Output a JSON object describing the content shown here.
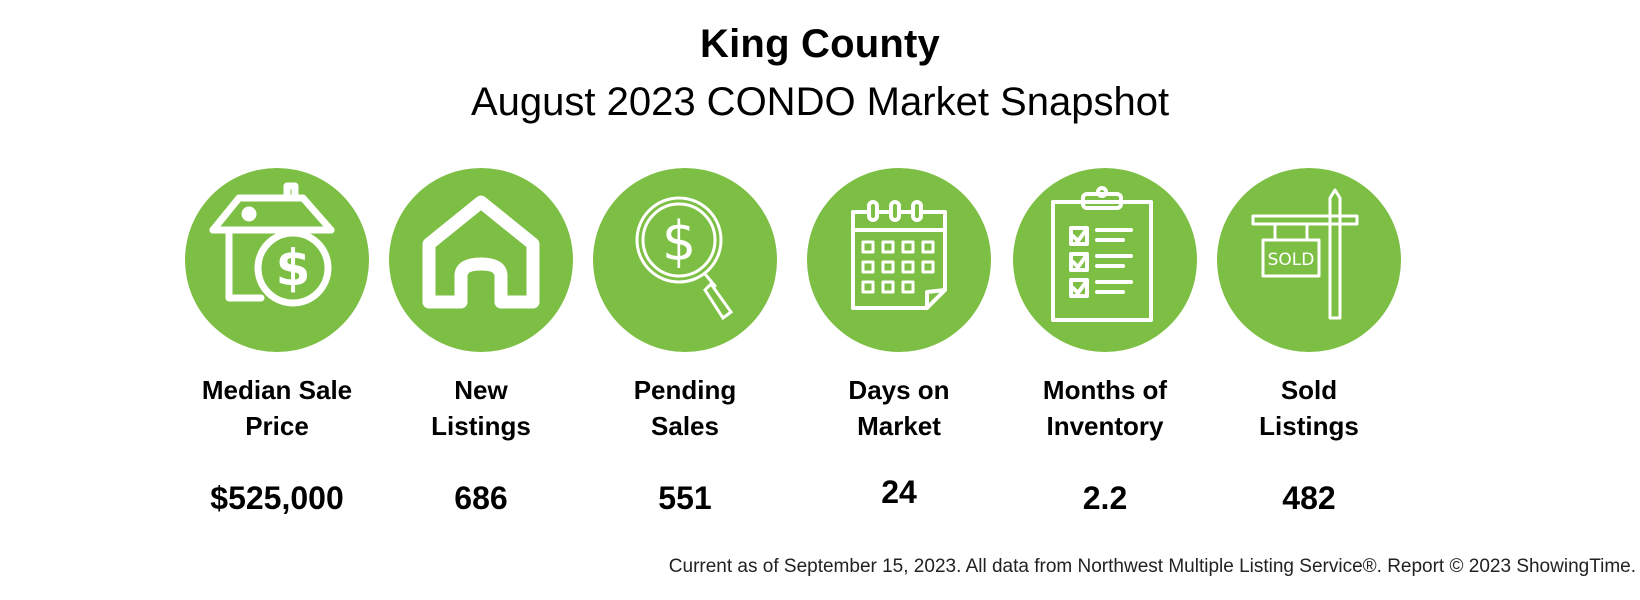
{
  "header": {
    "title": "King County",
    "subtitle": "August 2023 CONDO Market Snapshot"
  },
  "accent_color": "#7dbf44",
  "stats": [
    {
      "icon": "house-dollar-icon",
      "label_line1": "Median Sale",
      "label_line2": "Price",
      "value": "$525,000"
    },
    {
      "icon": "house-icon",
      "label_line1": "New",
      "label_line2": "Listings",
      "value": "686"
    },
    {
      "icon": "magnifier-dollar-icon",
      "label_line1": "Pending",
      "label_line2": "Sales",
      "value": "551"
    },
    {
      "icon": "calendar-icon",
      "label_line1": "Days on",
      "label_line2": "Market",
      "value": "24"
    },
    {
      "icon": "clipboard-checklist-icon",
      "label_line1": "Months of",
      "label_line2": "Inventory",
      "value": "2.2"
    },
    {
      "icon": "sold-sign-icon",
      "label_line1": "Sold",
      "label_line2": "Listings",
      "value": "482",
      "sign_text": "SOLD"
    }
  ],
  "footer": "Current as of September 15, 2023. All data from Northwest Multiple Listing Service®. Report © 2023 ShowingTime."
}
